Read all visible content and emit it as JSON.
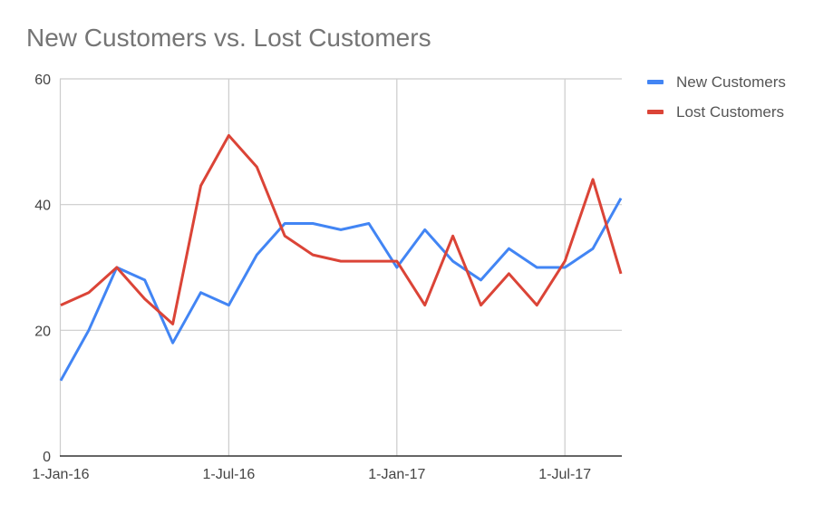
{
  "title": "New Customers vs. Lost Customers",
  "legend": [
    {
      "label": "New Customers",
      "color": "#4285f4"
    },
    {
      "label": "Lost Customers",
      "color": "#db4437"
    }
  ],
  "axes": {
    "y_ticks": [
      "0",
      "20",
      "40",
      "60"
    ],
    "x_ticks": [
      "1-Jan-16",
      "1-Jul-16",
      "1-Jan-17",
      "1-Jul-17"
    ]
  },
  "chart_data": {
    "type": "line",
    "title": "New Customers vs. Lost Customers",
    "xlabel": "",
    "ylabel": "",
    "ylim": [
      0,
      60
    ],
    "grid": true,
    "legend_position": "right",
    "x": [
      "1-Jan-16",
      "1-Feb-16",
      "1-Mar-16",
      "1-Apr-16",
      "1-May-16",
      "1-Jun-16",
      "1-Jul-16",
      "1-Aug-16",
      "1-Sep-16",
      "1-Oct-16",
      "1-Nov-16",
      "1-Dec-16",
      "1-Jan-17",
      "1-Feb-17",
      "1-Mar-17",
      "1-Apr-17",
      "1-May-17",
      "1-Jun-17",
      "1-Jul-17",
      "1-Aug-17",
      "1-Sep-17"
    ],
    "x_tick_labels": [
      "1-Jan-16",
      "1-Jul-16",
      "1-Jan-17",
      "1-Jul-17"
    ],
    "y_tick_labels": [
      "0",
      "20",
      "40",
      "60"
    ],
    "series": [
      {
        "name": "New Customers",
        "color": "#4285f4",
        "values": [
          12,
          20,
          30,
          28,
          18,
          26,
          24,
          32,
          37,
          37,
          36,
          37,
          30,
          36,
          31,
          28,
          33,
          30,
          30,
          33,
          41
        ]
      },
      {
        "name": "Lost Customers",
        "color": "#db4437",
        "values": [
          24,
          26,
          30,
          25,
          21,
          43,
          51,
          46,
          35,
          32,
          31,
          31,
          31,
          24,
          35,
          24,
          29,
          24,
          31,
          44,
          29
        ]
      }
    ]
  }
}
